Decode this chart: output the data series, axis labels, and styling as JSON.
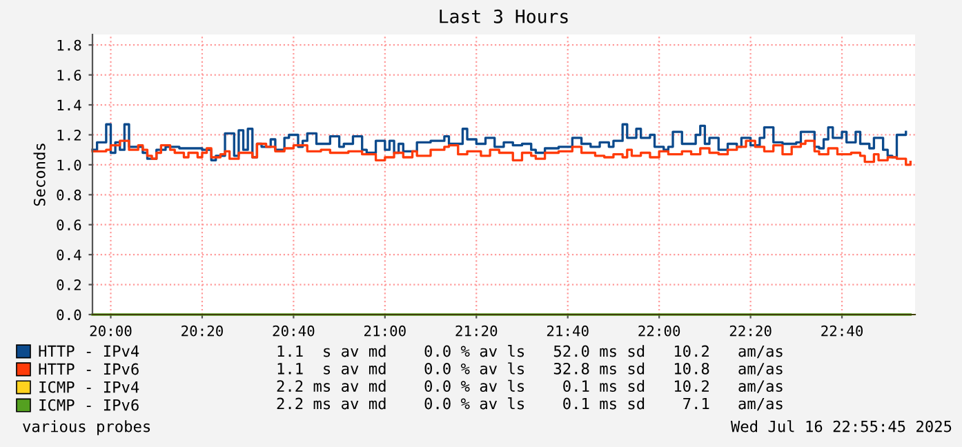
{
  "chart_data": {
    "type": "step",
    "title": "Last 3 Hours",
    "ylabel": "Seconds",
    "xlim": [
      "2025-07-16T19:56",
      "2025-07-16T22:56"
    ],
    "ylim": [
      0,
      1.87
    ],
    "xticks": [
      {
        "value": "2025-07-16T20:00",
        "label": "20:00"
      },
      {
        "value": "2025-07-16T20:20",
        "label": "20:20"
      },
      {
        "value": "2025-07-16T20:40",
        "label": "20:40"
      },
      {
        "value": "2025-07-16T21:00",
        "label": "21:00"
      },
      {
        "value": "2025-07-16T21:20",
        "label": "21:20"
      },
      {
        "value": "2025-07-16T21:40",
        "label": "21:40"
      },
      {
        "value": "2025-07-16T22:00",
        "label": "22:00"
      },
      {
        "value": "2025-07-16T22:20",
        "label": "22:20"
      },
      {
        "value": "2025-07-16T22:40",
        "label": "22:40"
      }
    ],
    "yticks": [
      {
        "value": 0,
        "label": "0.0"
      },
      0.2,
      0.4,
      0.6,
      0.8,
      {
        "value": 1,
        "label": "1.0"
      },
      1.2,
      1.4,
      1.6,
      1.8
    ],
    "grid": true,
    "legend": "bottom left",
    "series": [
      {
        "name": "HTTP - IPv4",
        "color": "#0c4a8c",
        "x": [
          "2025-07-16T19:56",
          "2025-07-16T19:57",
          "2025-07-16T19:59",
          "2025-07-16T20:00",
          "2025-07-16T20:01",
          "2025-07-16T20:02",
          "2025-07-16T20:03",
          "2025-07-16T20:04",
          "2025-07-16T20:07",
          "2025-07-16T20:08",
          "2025-07-16T20:10",
          "2025-07-16T20:12",
          "2025-07-16T20:15",
          "2025-07-16T20:20",
          "2025-07-16T20:22",
          "2025-07-16T20:23",
          "2025-07-16T20:25",
          "2025-07-16T20:27",
          "2025-07-16T20:28",
          "2025-07-16T20:29",
          "2025-07-16T20:30",
          "2025-07-16T20:31",
          "2025-07-16T20:32",
          "2025-07-16T20:33",
          "2025-07-16T20:35",
          "2025-07-16T20:36",
          "2025-07-16T20:38",
          "2025-07-16T20:39",
          "2025-07-16T20:41",
          "2025-07-16T20:42",
          "2025-07-16T20:43",
          "2025-07-16T20:45",
          "2025-07-16T20:48",
          "2025-07-16T20:50",
          "2025-07-16T20:51",
          "2025-07-16T20:53",
          "2025-07-16T20:55",
          "2025-07-16T20:56",
          "2025-07-16T20:58",
          "2025-07-16T21:00",
          "2025-07-16T21:01",
          "2025-07-16T21:02",
          "2025-07-16T21:03",
          "2025-07-16T21:04",
          "2025-07-16T21:07",
          "2025-07-16T21:10",
          "2025-07-16T21:13",
          "2025-07-16T21:14",
          "2025-07-16T21:17",
          "2025-07-16T21:18",
          "2025-07-16T21:20",
          "2025-07-16T21:22",
          "2025-07-16T21:24",
          "2025-07-16T21:26",
          "2025-07-16T21:28",
          "2025-07-16T21:30",
          "2025-07-16T21:32",
          "2025-07-16T21:33",
          "2025-07-16T21:35",
          "2025-07-16T21:38",
          "2025-07-16T21:41",
          "2025-07-16T21:43",
          "2025-07-16T21:45",
          "2025-07-16T21:47",
          "2025-07-16T21:49",
          "2025-07-16T21:50",
          "2025-07-16T21:52",
          "2025-07-16T21:53",
          "2025-07-16T21:55",
          "2025-07-16T21:56",
          "2025-07-16T21:58",
          "2025-07-16T21:59",
          "2025-07-16T22:01",
          "2025-07-16T22:02",
          "2025-07-16T22:03",
          "2025-07-16T22:05",
          "2025-07-16T22:08",
          "2025-07-16T22:09",
          "2025-07-16T22:10",
          "2025-07-16T22:11",
          "2025-07-16T22:13",
          "2025-07-16T22:15",
          "2025-07-16T22:17",
          "2025-07-16T22:18",
          "2025-07-16T22:20",
          "2025-07-16T22:22",
          "2025-07-16T22:23",
          "2025-07-16T22:25",
          "2025-07-16T22:27",
          "2025-07-16T22:30",
          "2025-07-16T22:31",
          "2025-07-16T22:34",
          "2025-07-16T22:35",
          "2025-07-16T22:36",
          "2025-07-16T22:37",
          "2025-07-16T22:38",
          "2025-07-16T22:40",
          "2025-07-16T22:41",
          "2025-07-16T22:43",
          "2025-07-16T22:44",
          "2025-07-16T22:46",
          "2025-07-16T22:47",
          "2025-07-16T22:49",
          "2025-07-16T22:50",
          "2025-07-16T22:51",
          "2025-07-16T22:52",
          "2025-07-16T22:54"
        ],
        "values": [
          1.1,
          1.15,
          1.27,
          1.08,
          1.15,
          1.1,
          1.27,
          1.12,
          1.08,
          1.04,
          1.1,
          1.12,
          1.11,
          1.1,
          1.03,
          1.06,
          1.21,
          1.06,
          1.23,
          1.1,
          1.24,
          1.05,
          1.14,
          1.12,
          1.17,
          1.1,
          1.18,
          1.2,
          1.12,
          1.16,
          1.21,
          1.14,
          1.19,
          1.12,
          1.14,
          1.19,
          1.1,
          1.08,
          1.16,
          1.1,
          1.16,
          1.08,
          1.14,
          1.09,
          1.15,
          1.16,
          1.19,
          1.14,
          1.24,
          1.17,
          1.14,
          1.18,
          1.12,
          1.15,
          1.13,
          1.14,
          1.1,
          1.08,
          1.11,
          1.12,
          1.18,
          1.14,
          1.12,
          1.15,
          1.12,
          1.16,
          1.27,
          1.18,
          1.24,
          1.18,
          1.2,
          1.12,
          1.1,
          1.12,
          1.22,
          1.14,
          1.2,
          1.26,
          1.14,
          1.18,
          1.1,
          1.14,
          1.12,
          1.18,
          1.13,
          1.18,
          1.25,
          1.15,
          1.14,
          1.15,
          1.22,
          1.12,
          1.11,
          1.17,
          1.25,
          1.18,
          1.22,
          1.15,
          1.22,
          1.14,
          1.11,
          1.18,
          1.1,
          1.06,
          1.05,
          1.2,
          1.22
        ]
      },
      {
        "name": "HTTP - IPv6",
        "color": "#ff3b0a",
        "x": [
          "2025-07-16T19:56",
          "2025-07-16T19:59",
          "2025-07-16T20:00",
          "2025-07-16T20:02",
          "2025-07-16T20:04",
          "2025-07-16T20:06",
          "2025-07-16T20:07",
          "2025-07-16T20:08",
          "2025-07-16T20:09",
          "2025-07-16T20:10",
          "2025-07-16T20:11",
          "2025-07-16T20:13",
          "2025-07-16T20:14",
          "2025-07-16T20:16",
          "2025-07-16T20:17",
          "2025-07-16T20:19",
          "2025-07-16T20:20",
          "2025-07-16T20:21",
          "2025-07-16T20:22",
          "2025-07-16T20:24",
          "2025-07-16T20:25",
          "2025-07-16T20:26",
          "2025-07-16T20:28",
          "2025-07-16T20:31",
          "2025-07-16T20:32",
          "2025-07-16T20:34",
          "2025-07-16T20:36",
          "2025-07-16T20:38",
          "2025-07-16T20:40",
          "2025-07-16T20:43",
          "2025-07-16T20:46",
          "2025-07-16T20:48",
          "2025-07-16T20:52",
          "2025-07-16T20:55",
          "2025-07-16T20:58",
          "2025-07-16T21:00",
          "2025-07-16T21:02",
          "2025-07-16T21:04",
          "2025-07-16T21:06",
          "2025-07-16T21:07",
          "2025-07-16T21:10",
          "2025-07-16T21:13",
          "2025-07-16T21:14",
          "2025-07-16T21:16",
          "2025-07-16T21:18",
          "2025-07-16T21:21",
          "2025-07-16T21:23",
          "2025-07-16T21:25",
          "2025-07-16T21:28",
          "2025-07-16T21:30",
          "2025-07-16T21:32",
          "2025-07-16T21:33",
          "2025-07-16T21:35",
          "2025-07-16T21:38",
          "2025-07-16T21:41",
          "2025-07-16T21:43",
          "2025-07-16T21:46",
          "2025-07-16T21:48",
          "2025-07-16T21:50",
          "2025-07-16T21:52",
          "2025-07-16T21:53",
          "2025-07-16T21:54",
          "2025-07-16T21:56",
          "2025-07-16T21:58",
          "2025-07-16T22:00",
          "2025-07-16T22:02",
          "2025-07-16T22:05",
          "2025-07-16T22:07",
          "2025-07-16T22:09",
          "2025-07-16T22:11",
          "2025-07-16T22:13",
          "2025-07-16T22:15",
          "2025-07-16T22:17",
          "2025-07-16T22:19",
          "2025-07-16T22:21",
          "2025-07-16T22:23",
          "2025-07-16T22:25",
          "2025-07-16T22:27",
          "2025-07-16T22:29",
          "2025-07-16T22:31",
          "2025-07-16T22:32",
          "2025-07-16T22:34",
          "2025-07-16T22:35",
          "2025-07-16T22:37",
          "2025-07-16T22:39",
          "2025-07-16T22:42",
          "2025-07-16T22:44",
          "2025-07-16T22:45",
          "2025-07-16T22:47",
          "2025-07-16T22:48",
          "2025-07-16T22:50",
          "2025-07-16T22:52",
          "2025-07-16T22:54",
          "2025-07-16T22:55"
        ],
        "values": [
          1.09,
          1.1,
          1.13,
          1.16,
          1.1,
          1.13,
          1.1,
          1.06,
          1.04,
          1.08,
          1.13,
          1.1,
          1.08,
          1.05,
          1.08,
          1.05,
          1.08,
          1.11,
          1.05,
          1.07,
          1.09,
          1.04,
          1.08,
          1.05,
          1.14,
          1.12,
          1.09,
          1.11,
          1.13,
          1.09,
          1.1,
          1.08,
          1.09,
          1.07,
          1.03,
          1.05,
          1.08,
          1.05,
          1.09,
          1.06,
          1.1,
          1.12,
          1.13,
          1.07,
          1.09,
          1.06,
          1.1,
          1.08,
          1.03,
          1.08,
          1.06,
          1.04,
          1.08,
          1.09,
          1.12,
          1.08,
          1.06,
          1.05,
          1.07,
          1.05,
          1.1,
          1.06,
          1.08,
          1.05,
          1.09,
          1.07,
          1.09,
          1.07,
          1.11,
          1.08,
          1.07,
          1.1,
          1.12,
          1.16,
          1.12,
          1.09,
          1.13,
          1.07,
          1.12,
          1.14,
          1.16,
          1.09,
          1.07,
          1.11,
          1.07,
          1.08,
          1.06,
          1.02,
          1.07,
          1.03,
          1.05,
          1.04,
          1.0,
          1.02
        ]
      },
      {
        "name": "ICMP - IPv4",
        "color": "#ffd21f"
      },
      {
        "name": "ICMP - IPv6",
        "color": "#54a020",
        "x": [
          "2025-07-16T19:56",
          "2025-07-16T22:55"
        ],
        "values": [
          0,
          0
        ]
      }
    ],
    "annotations": [
      "1.1  s av md    0.0 % av ls   52.0 ms sd   10.2   am/as",
      "1.1  s av md    0.0 % av ls   32.8 ms sd   10.8   am/as",
      "2.2 ms av md    0.0 % av ls    0.1 ms sd   10.2   am/as",
      "2.2 ms av md    0.0 % av ls    0.1 ms sd    7.1   am/as",
      "various probes",
      "Wed Jul 16 22:55:45 2025"
    ]
  }
}
